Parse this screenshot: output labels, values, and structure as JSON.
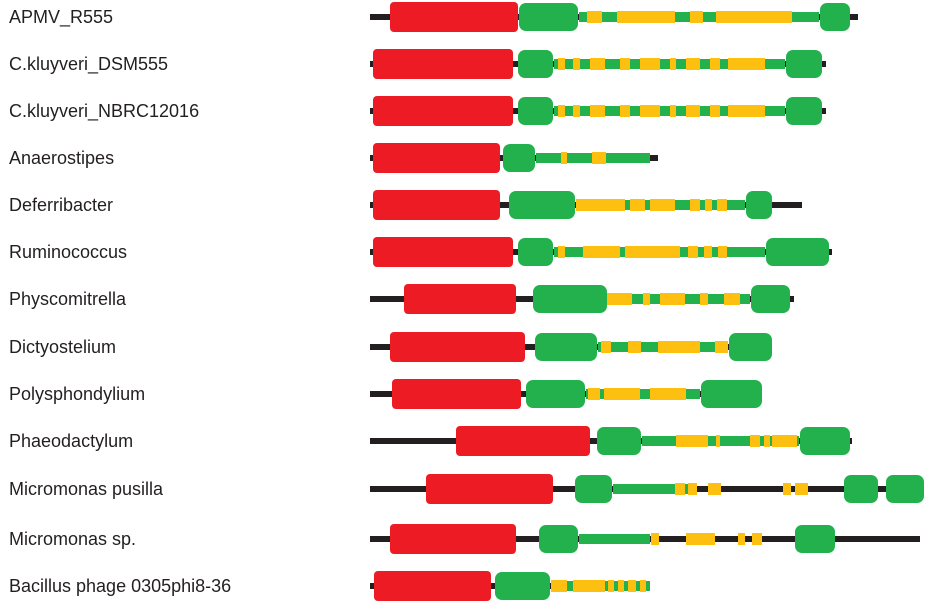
{
  "colors": {
    "backbone": "#231f20",
    "domain_red": "#ed1c24",
    "domain_green": "#22b14c",
    "segment_yellow": "#fdc011",
    "text": "#231f20"
  },
  "tracks": [
    {
      "label": "APMV_R555"
    },
    {
      "label": "C.kluyveri_DSM555"
    },
    {
      "label": "C.kluyveri_NBRC12016"
    },
    {
      "label": "Anaerostipes"
    },
    {
      "label": "Deferribacter"
    },
    {
      "label": "Ruminococcus"
    },
    {
      "label": "Physcomitrella"
    },
    {
      "label": "Dictyostelium"
    },
    {
      "label": "Polysphondylium"
    },
    {
      "label": "Phaeodactylum"
    },
    {
      "label": "Micromonas pusilla"
    },
    {
      "label": "Micromonas sp."
    },
    {
      "label": "Bacillus phage 0305phi8-36"
    }
  ]
}
